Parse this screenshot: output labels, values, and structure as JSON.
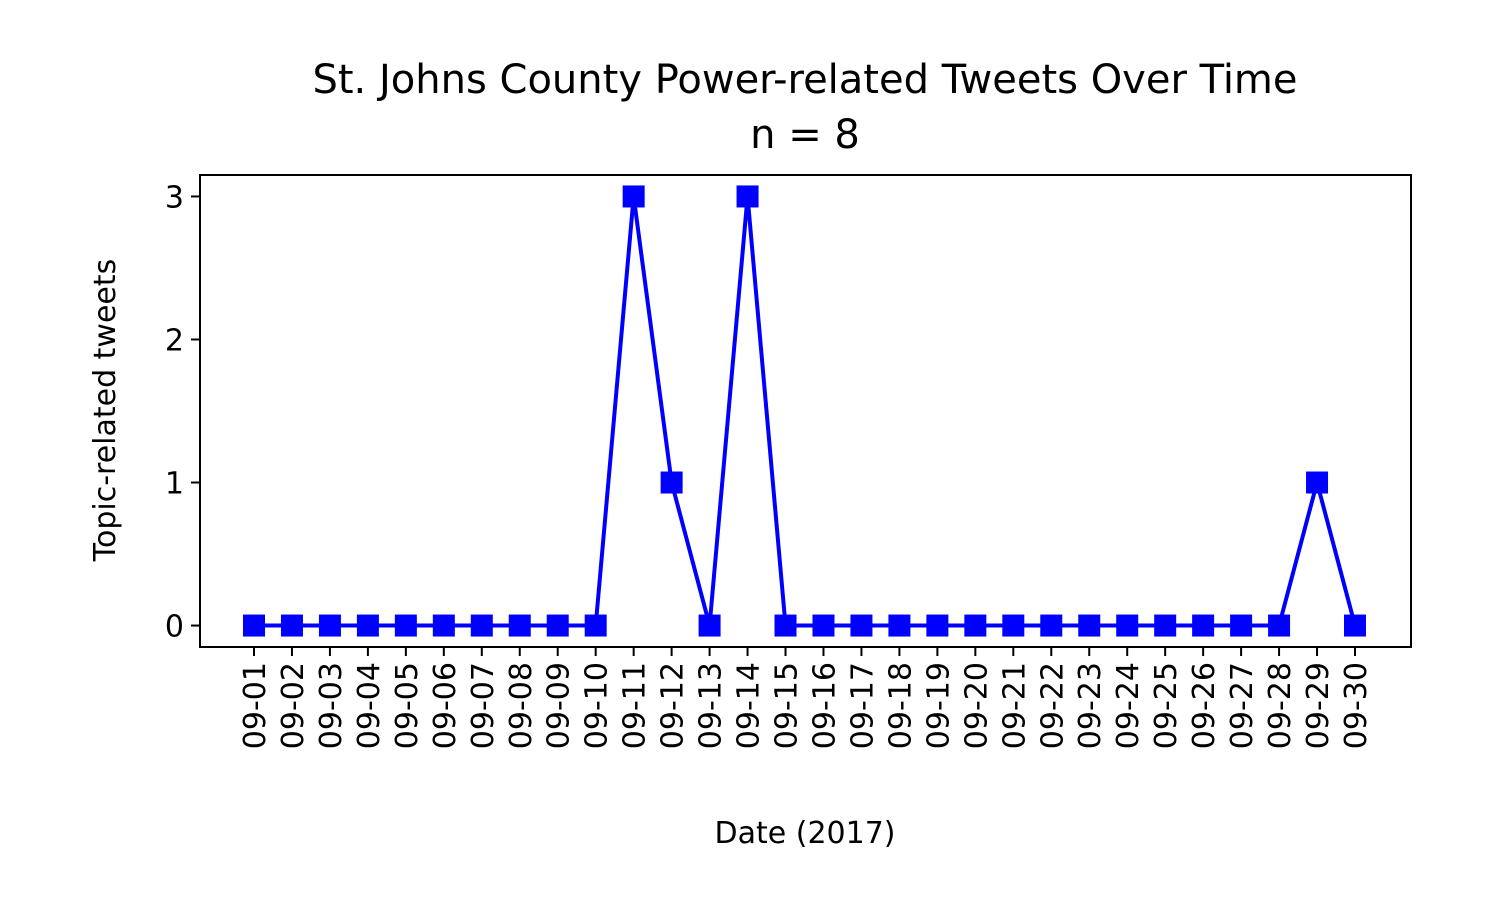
{
  "chart_data": {
    "type": "line",
    "title": "St. Johns County Power-related Tweets Over Time",
    "subtitle": "n = 8",
    "xlabel": "Date (2017)",
    "ylabel": "Topic-related tweets",
    "x": [
      "09-01",
      "09-02",
      "09-03",
      "09-04",
      "09-05",
      "09-06",
      "09-07",
      "09-08",
      "09-09",
      "09-10",
      "09-11",
      "09-12",
      "09-13",
      "09-14",
      "09-15",
      "09-16",
      "09-17",
      "09-18",
      "09-19",
      "09-20",
      "09-21",
      "09-22",
      "09-23",
      "09-24",
      "09-25",
      "09-26",
      "09-27",
      "09-28",
      "09-29",
      "09-30"
    ],
    "series": [
      {
        "values": [
          0,
          0,
          0,
          0,
          0,
          0,
          0,
          0,
          0,
          0,
          3,
          1,
          0,
          3,
          0,
          0,
          0,
          0,
          0,
          0,
          0,
          0,
          0,
          0,
          0,
          0,
          0,
          0,
          1,
          0
        ],
        "color": "#0000ff",
        "marker": "square"
      }
    ],
    "yticks": [
      0,
      1,
      2,
      3
    ],
    "ylim": [
      -0.15,
      3.15
    ],
    "grid": false,
    "legend": "none"
  }
}
